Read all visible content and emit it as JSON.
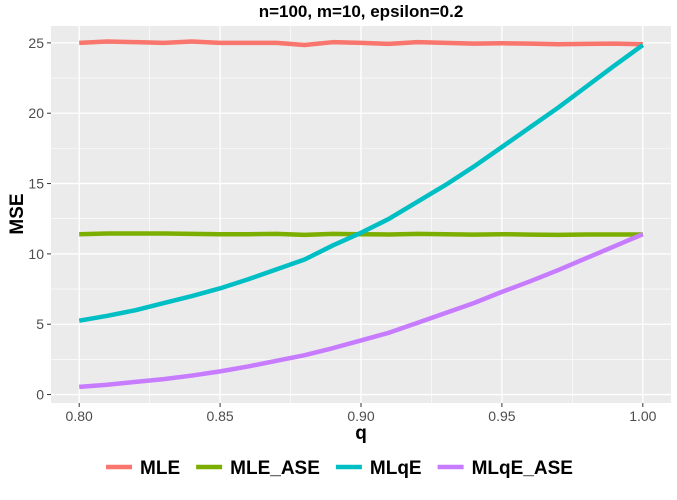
{
  "chart_data": {
    "type": "line",
    "title": "n=100, m=10, epsilon=0.2",
    "xlabel": "q",
    "ylabel": "MSE",
    "xlim": [
      0.79,
      1.01
    ],
    "ylim": [
      -0.6,
      26.2
    ],
    "x_ticks": [
      0.8,
      0.85,
      0.9,
      0.95,
      1.0
    ],
    "x_tick_labels": [
      "0.80",
      "0.85",
      "0.90",
      "0.95",
      "1.00"
    ],
    "y_ticks": [
      0,
      5,
      10,
      15,
      20,
      25
    ],
    "y_tick_labels": [
      "0",
      "5",
      "10",
      "15",
      "20",
      "25"
    ],
    "grid": true,
    "legend_position": "bottom",
    "x": [
      0.8,
      0.81,
      0.82,
      0.83,
      0.84,
      0.85,
      0.86,
      0.87,
      0.88,
      0.89,
      0.9,
      0.91,
      0.92,
      0.93,
      0.94,
      0.95,
      0.96,
      0.97,
      0.98,
      0.99,
      1.0
    ],
    "series": [
      {
        "name": "MLE",
        "color": "#f8766d",
        "values": [
          25.0,
          25.1,
          25.05,
          25.0,
          25.1,
          25.0,
          25.0,
          25.0,
          24.85,
          25.05,
          25.0,
          24.93,
          25.05,
          25.0,
          24.95,
          24.97,
          24.95,
          24.9,
          24.93,
          24.95,
          24.9
        ]
      },
      {
        "name": "MLE_ASE",
        "color": "#7cae00",
        "values": [
          11.4,
          11.45,
          11.45,
          11.45,
          11.42,
          11.4,
          11.4,
          11.42,
          11.35,
          11.42,
          11.4,
          11.38,
          11.42,
          11.4,
          11.37,
          11.4,
          11.37,
          11.35,
          11.38,
          11.38,
          11.38
        ]
      },
      {
        "name": "MLqE",
        "color": "#00bfc4",
        "values": [
          5.25,
          5.6,
          6.0,
          6.5,
          7.0,
          7.55,
          8.2,
          8.9,
          9.6,
          10.6,
          11.5,
          12.5,
          13.7,
          14.9,
          16.2,
          17.6,
          19.0,
          20.4,
          21.9,
          23.4,
          24.85
        ]
      },
      {
        "name": "MLqE_ASE",
        "color": "#c77cff",
        "values": [
          0.55,
          0.7,
          0.9,
          1.1,
          1.35,
          1.65,
          2.0,
          2.4,
          2.8,
          3.3,
          3.85,
          4.4,
          5.1,
          5.8,
          6.5,
          7.3,
          8.05,
          8.85,
          9.7,
          10.55,
          11.4
        ]
      }
    ]
  }
}
